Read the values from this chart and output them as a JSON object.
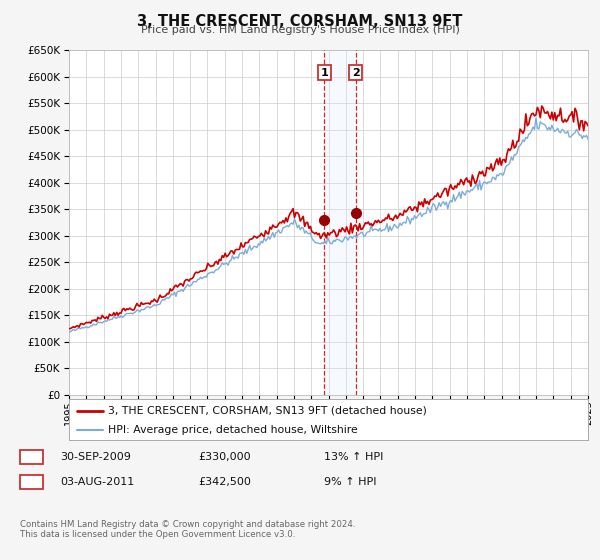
{
  "title": "3, THE CRESCENT, CORSHAM, SN13 9FT",
  "subtitle": "Price paid vs. HM Land Registry's House Price Index (HPI)",
  "legend_line1": "3, THE CRESCENT, CORSHAM, SN13 9FT (detached house)",
  "legend_line2": "HPI: Average price, detached house, Wiltshire",
  "transaction1_label": "1",
  "transaction1_date": "30-SEP-2009",
  "transaction1_price": "£330,000",
  "transaction1_hpi": "13% ↑ HPI",
  "transaction2_label": "2",
  "transaction2_date": "03-AUG-2011",
  "transaction2_price": "£342,500",
  "transaction2_hpi": "9% ↑ HPI",
  "footer": "Contains HM Land Registry data © Crown copyright and database right 2024.\nThis data is licensed under the Open Government Licence v3.0.",
  "hpi_color": "#7aaddc",
  "price_color": "#cc0000",
  "marker_color": "#990000",
  "transaction1_x": 2009.75,
  "transaction2_x": 2011.58,
  "transaction1_y": 330000,
  "transaction2_y": 342500,
  "xmin": 1995,
  "xmax": 2025,
  "ymin": 0,
  "ymax": 650000,
  "yticks": [
    0,
    50000,
    100000,
    150000,
    200000,
    250000,
    300000,
    350000,
    400000,
    450000,
    500000,
    550000,
    600000,
    650000
  ],
  "background_color": "#f5f5f5",
  "plot_bg_color": "#ffffff",
  "grid_color": "#cccccc",
  "shade_color": "#ddeeff",
  "shade_xmin": 2009.75,
  "shade_xmax": 2011.58
}
